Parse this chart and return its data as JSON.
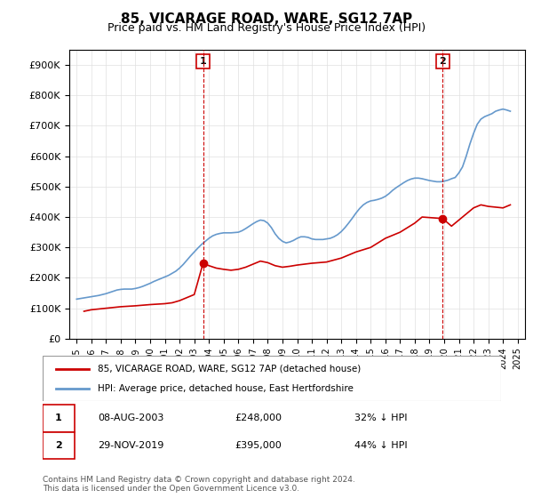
{
  "title": "85, VICARAGE ROAD, WARE, SG12 7AP",
  "subtitle": "Price paid vs. HM Land Registry's House Price Index (HPI)",
  "legend_line1": "85, VICARAGE ROAD, WARE, SG12 7AP (detached house)",
  "legend_line2": "HPI: Average price, detached house, East Hertfordshire",
  "annotation1_label": "1",
  "annotation1_date": "08-AUG-2003",
  "annotation1_price": "£248,000",
  "annotation1_hpi": "32% ↓ HPI",
  "annotation1_year": 2003.6,
  "annotation1_value": 248000,
  "annotation2_label": "2",
  "annotation2_date": "29-NOV-2019",
  "annotation2_price": "£395,000",
  "annotation2_hpi": "44% ↓ HPI",
  "annotation2_year": 2019.9,
  "annotation2_value": 395000,
  "price_color": "#cc0000",
  "hpi_color": "#6699cc",
  "annotation_color": "#cc0000",
  "footer": "Contains HM Land Registry data © Crown copyright and database right 2024.\nThis data is licensed under the Open Government Licence v3.0.",
  "ylim": [
    0,
    950000
  ],
  "yticks": [
    0,
    100000,
    200000,
    300000,
    400000,
    500000,
    600000,
    700000,
    800000,
    900000
  ],
  "hpi_years": [
    1995,
    1995.25,
    1995.5,
    1995.75,
    1996,
    1996.25,
    1996.5,
    1996.75,
    1997,
    1997.25,
    1997.5,
    1997.75,
    1998,
    1998.25,
    1998.5,
    1998.75,
    1999,
    1999.25,
    1999.5,
    1999.75,
    2000,
    2000.25,
    2000.5,
    2000.75,
    2001,
    2001.25,
    2001.5,
    2001.75,
    2002,
    2002.25,
    2002.5,
    2002.75,
    2003,
    2003.25,
    2003.5,
    2003.75,
    2004,
    2004.25,
    2004.5,
    2004.75,
    2005,
    2005.25,
    2005.5,
    2005.75,
    2006,
    2006.25,
    2006.5,
    2006.75,
    2007,
    2007.25,
    2007.5,
    2007.75,
    2008,
    2008.25,
    2008.5,
    2008.75,
    2009,
    2009.25,
    2009.5,
    2009.75,
    2010,
    2010.25,
    2010.5,
    2010.75,
    2011,
    2011.25,
    2011.5,
    2011.75,
    2012,
    2012.25,
    2012.5,
    2012.75,
    2013,
    2013.25,
    2013.5,
    2013.75,
    2014,
    2014.25,
    2014.5,
    2014.75,
    2015,
    2015.25,
    2015.5,
    2015.75,
    2016,
    2016.25,
    2016.5,
    2016.75,
    2017,
    2017.25,
    2017.5,
    2017.75,
    2018,
    2018.25,
    2018.5,
    2018.75,
    2019,
    2019.25,
    2019.5,
    2019.75,
    2020,
    2020.25,
    2020.5,
    2020.75,
    2021,
    2021.25,
    2021.5,
    2021.75,
    2022,
    2022.25,
    2022.5,
    2022.75,
    2023,
    2023.25,
    2023.5,
    2023.75,
    2024,
    2024.25,
    2024.5
  ],
  "hpi_values": [
    130000,
    132000,
    134000,
    136000,
    138000,
    140000,
    142000,
    145000,
    148000,
    152000,
    156000,
    160000,
    162000,
    163000,
    163000,
    163000,
    165000,
    168000,
    172000,
    177000,
    182000,
    188000,
    193000,
    198000,
    203000,
    208000,
    215000,
    222000,
    232000,
    244000,
    258000,
    272000,
    285000,
    298000,
    310000,
    320000,
    330000,
    338000,
    343000,
    346000,
    348000,
    348000,
    348000,
    349000,
    350000,
    355000,
    362000,
    370000,
    378000,
    385000,
    390000,
    388000,
    380000,
    365000,
    345000,
    330000,
    320000,
    315000,
    318000,
    323000,
    330000,
    335000,
    335000,
    333000,
    328000,
    326000,
    326000,
    326000,
    328000,
    330000,
    335000,
    342000,
    352000,
    365000,
    380000,
    396000,
    413000,
    428000,
    440000,
    448000,
    453000,
    455000,
    458000,
    462000,
    468000,
    477000,
    488000,
    497000,
    505000,
    513000,
    520000,
    525000,
    528000,
    528000,
    526000,
    523000,
    520000,
    518000,
    516000,
    516000,
    518000,
    521000,
    526000,
    530000,
    545000,
    565000,
    600000,
    640000,
    675000,
    705000,
    722000,
    730000,
    735000,
    740000,
    748000,
    752000,
    755000,
    752000,
    748000
  ],
  "price_years": [
    1995.5,
    1996.0,
    1997.0,
    1998.0,
    1999.0,
    2000.0,
    2001.0,
    2001.5,
    2002.0,
    2002.5,
    2003.0,
    2003.6,
    2004.0,
    2004.5,
    2005.0,
    2005.5,
    2006.0,
    2006.5,
    2007.0,
    2007.5,
    2008.0,
    2008.5,
    2009.0,
    2009.5,
    2010.0,
    2011.0,
    2012.0,
    2013.0,
    2014.0,
    2015.0,
    2015.5,
    2016.0,
    2017.0,
    2018.0,
    2018.5,
    2019.9,
    2020.5,
    2021.0,
    2021.5,
    2022.0,
    2022.5,
    2023.0,
    2024.0,
    2024.5
  ],
  "price_values": [
    90000,
    95000,
    100000,
    105000,
    108000,
    112000,
    115000,
    118000,
    125000,
    135000,
    145000,
    248000,
    240000,
    232000,
    228000,
    225000,
    228000,
    235000,
    245000,
    255000,
    250000,
    240000,
    235000,
    238000,
    242000,
    248000,
    252000,
    265000,
    285000,
    300000,
    315000,
    330000,
    350000,
    380000,
    400000,
    395000,
    370000,
    390000,
    410000,
    430000,
    440000,
    435000,
    430000,
    440000
  ]
}
